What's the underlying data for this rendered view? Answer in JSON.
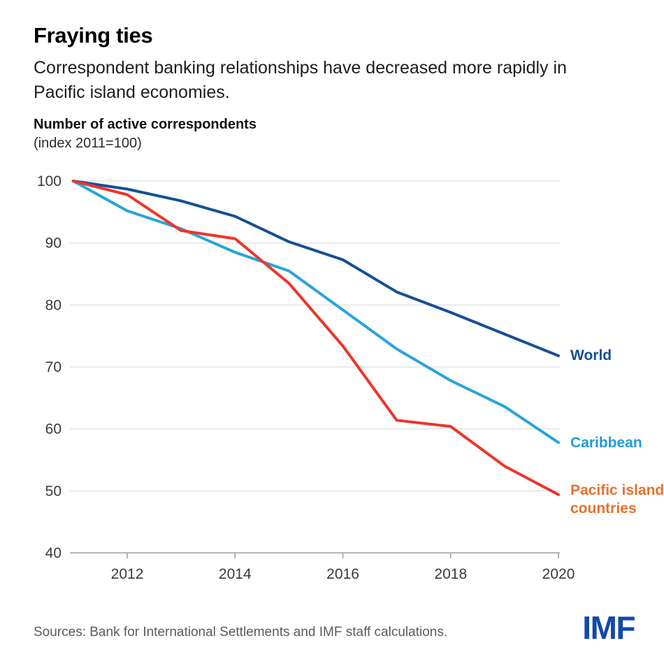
{
  "header": {
    "title": "Fraying ties",
    "subtitle": "Correspondent banking relationships have decreased more rapidly in Pacific island economies.",
    "axis_title": "Number of active correspondents",
    "axis_subtitle": "(index 2011=100)"
  },
  "chart_data": {
    "type": "line",
    "title": "Fraying ties",
    "ylabel": "Number of active correspondents (index 2011=100)",
    "x": [
      2011,
      2012,
      2013,
      2014,
      2015,
      2016,
      2017,
      2018,
      2019,
      2020
    ],
    "x_ticks": [
      2012,
      2014,
      2016,
      2018,
      2020
    ],
    "y_ticks": [
      40,
      50,
      60,
      70,
      80,
      90,
      100
    ],
    "ylim": [
      40,
      100
    ],
    "grid": "horizontal",
    "legend_position": "right-end-of-line",
    "series": [
      {
        "id": "world",
        "label": "World",
        "color": "#154F96",
        "label_color": "#154F96",
        "values": [
          100,
          98.7,
          96.8,
          94.3,
          90.2,
          87.3,
          82.1,
          78.8,
          75.3,
          71.8
        ]
      },
      {
        "id": "caribbean",
        "label": "Caribbean",
        "color": "#29A3DB",
        "label_color": "#219CD9",
        "values": [
          100,
          95.2,
          92.3,
          88.5,
          85.5,
          79.2,
          72.9,
          67.8,
          63.6,
          57.8
        ]
      },
      {
        "id": "pacific",
        "label": "Pacific island countries",
        "color": "#EC352B",
        "label_color": "#E8702E",
        "values": [
          100,
          97.8,
          92.0,
          90.7,
          83.5,
          73.4,
          61.4,
          60.4,
          54.0,
          49.4
        ]
      }
    ],
    "colors": {
      "grid": "#DCDCDC",
      "axis": "#A9A9A9",
      "tick_label": "#3A3A3A"
    }
  },
  "footer": {
    "sources": "Sources: Bank for International Settlements and IMF staff calculations.",
    "logo": "IMF",
    "logo_color": "#1348AC"
  }
}
